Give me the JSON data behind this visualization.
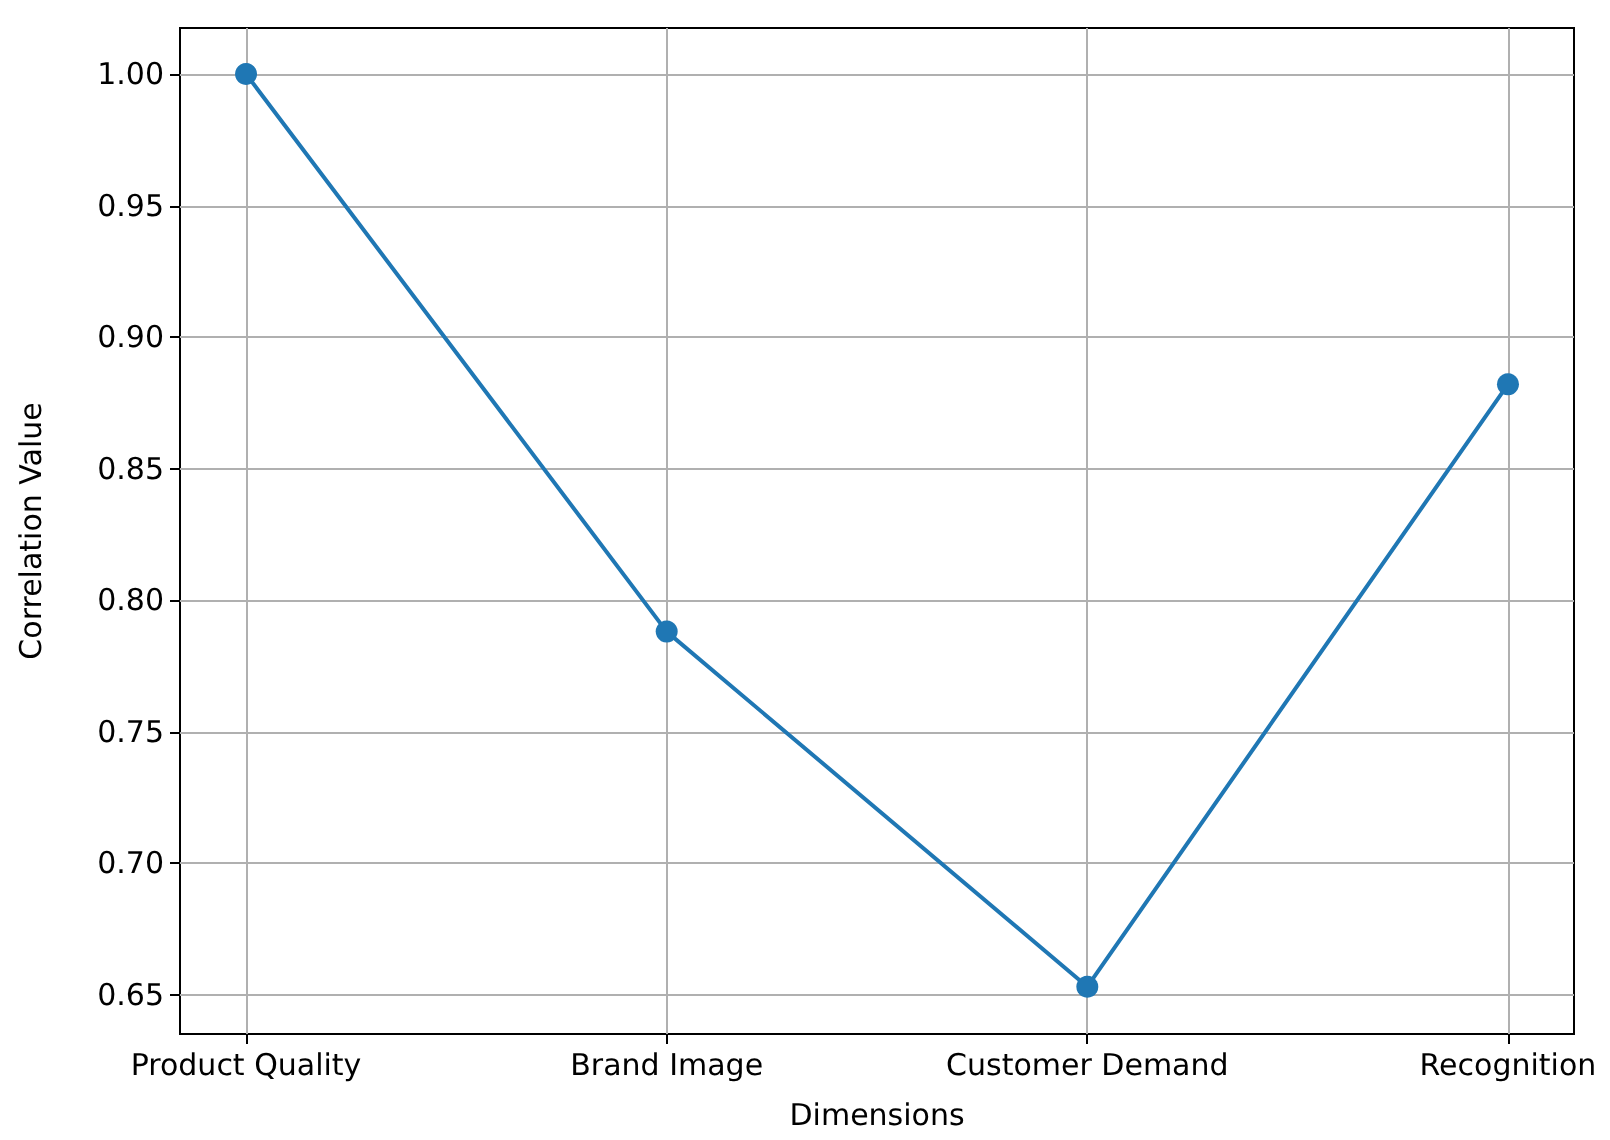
{
  "chart_data": {
    "type": "line",
    "xlabel": "Dimensions",
    "ylabel": "Correlation Value",
    "categories": [
      "Product Quality",
      "Brand Image",
      "Customer Demand",
      "Recognition"
    ],
    "series": [
      {
        "color": "#1f77b4",
        "values": [
          1.0,
          0.788,
          0.653,
          0.882
        ]
      }
    ],
    "ylim": [
      0.635,
      1.0175
    ],
    "yticks": [
      {
        "value": 0.65,
        "label": "0.65"
      },
      {
        "value": 0.7,
        "label": "0.70"
      },
      {
        "value": 0.75,
        "label": "0.75"
      },
      {
        "value": 0.8,
        "label": "0.80"
      },
      {
        "value": 0.85,
        "label": "0.85"
      },
      {
        "value": 0.9,
        "label": "0.90"
      },
      {
        "value": 0.95,
        "label": "0.95"
      },
      {
        "value": 1.0,
        "label": "1.00"
      }
    ],
    "grid": true,
    "marker": "circle",
    "line_style": "solid"
  }
}
